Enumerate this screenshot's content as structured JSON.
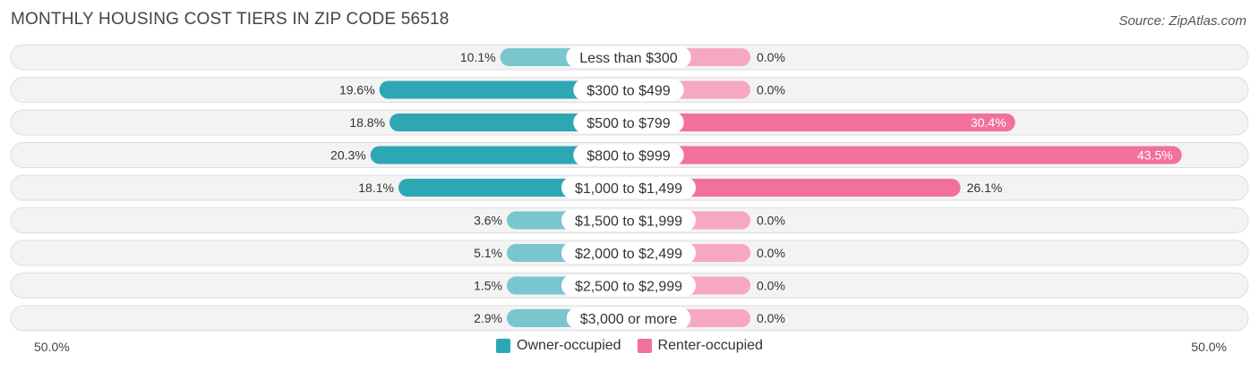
{
  "title": "MONTHLY HOUSING COST TIERS IN ZIP CODE 56518",
  "source": "Source: ZipAtlas.com",
  "colors": {
    "owner": "#2ea7b5",
    "owner_light": "#79c6cf",
    "renter": "#f2719a",
    "renter_light": "#f7a8c1"
  },
  "chart_data": {
    "type": "bar",
    "orientation": "horizontal-diverging",
    "categories": [
      "Less than $300",
      "$300 to $499",
      "$500 to $799",
      "$800 to $999",
      "$1,000 to $1,499",
      "$1,500 to $1,999",
      "$2,000 to $2,499",
      "$2,500 to $2,999",
      "$3,000 or more"
    ],
    "series": [
      {
        "name": "Owner-occupied",
        "values": [
          10.1,
          19.6,
          18.8,
          20.3,
          18.1,
          3.6,
          5.1,
          1.5,
          2.9
        ],
        "labels": [
          "10.1%",
          "19.6%",
          "18.8%",
          "20.3%",
          "18.1%",
          "3.6%",
          "5.1%",
          "1.5%",
          "2.9%"
        ]
      },
      {
        "name": "Renter-occupied",
        "values": [
          0.0,
          0.0,
          30.4,
          43.5,
          26.1,
          0.0,
          0.0,
          0.0,
          0.0
        ],
        "labels": [
          "0.0%",
          "0.0%",
          "30.4%",
          "43.5%",
          "26.1%",
          "0.0%",
          "0.0%",
          "0.0%",
          "0.0%"
        ]
      }
    ],
    "xlim": [
      -50,
      50
    ],
    "axis_left_label": "50.0%",
    "axis_right_label": "50.0%",
    "legend_position": "bottom-center"
  }
}
